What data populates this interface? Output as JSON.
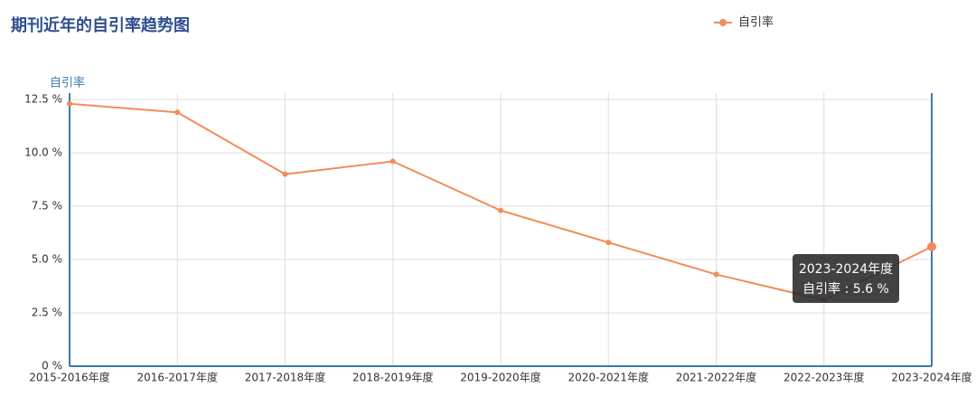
{
  "chart_data": {
    "type": "line",
    "title": "期刊近年的自引率趋势图",
    "y_label": "自引率",
    "categories": [
      "2015-2016年度",
      "2016-2017年度",
      "2017-2018年度",
      "2018-2019年度",
      "2019-2020年度",
      "2020-2021年度",
      "2021-2022年度",
      "2022-2023年度",
      "2023-2024年度"
    ],
    "series": [
      {
        "name": "自引率",
        "color": "#f28c5a",
        "values": [
          12.3,
          11.9,
          9.0,
          9.6,
          7.3,
          5.8,
          4.3,
          3.1,
          5.6
        ]
      }
    ],
    "ylim": [
      0,
      12.8
    ],
    "yticks": [
      {
        "value": 0,
        "label": "0 %"
      },
      {
        "value": 2.5,
        "label": "2.5 %"
      },
      {
        "value": 5,
        "label": "5.0 %"
      },
      {
        "value": 7.5,
        "label": "7.5 %"
      },
      {
        "value": 10,
        "label": "10.0 %"
      },
      {
        "value": 12.5,
        "label": "12.5 %"
      }
    ],
    "grid": true,
    "legend": "top-right",
    "tooltip": {
      "index": 8,
      "text": "自引率 : 5.6 %"
    }
  }
}
